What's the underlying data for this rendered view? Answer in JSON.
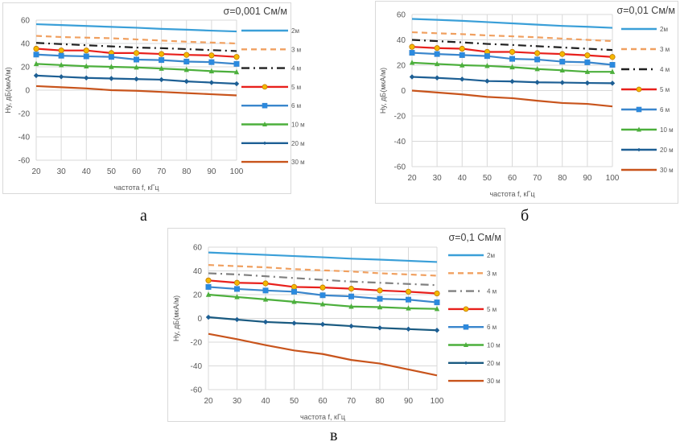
{
  "figure": {
    "captions": [
      "а",
      "б",
      "в"
    ]
  },
  "chart_data": [
    {
      "type": "line",
      "panel_label": "а",
      "title": "σ=0,001 См/м",
      "xlabel": "частота f, кГц",
      "ylabel": "Hy, дБ(мкА/м)",
      "x": [
        20,
        30,
        40,
        50,
        60,
        70,
        80,
        90,
        100
      ],
      "xlim": [
        20,
        100
      ],
      "ylim": [
        -60,
        60
      ],
      "yticks": [
        60,
        40,
        20,
        0,
        -20,
        -40,
        -60
      ],
      "xticks": [
        20,
        30,
        40,
        50,
        60,
        70,
        80,
        90,
        100
      ],
      "grid": true,
      "legend_position": "right",
      "series": [
        {
          "name": "2м",
          "color": "#3a9fd8",
          "style": "solid",
          "marker": "none",
          "values": [
            56.5,
            55.8,
            55,
            54.2,
            53.5,
            52.5,
            51.8,
            51,
            50.3
          ]
        },
        {
          "name": "3 м",
          "color": "#f0a060",
          "style": "dash",
          "marker": "none",
          "values": [
            46.5,
            45.5,
            45,
            44.5,
            43.5,
            42.5,
            41.5,
            40.8,
            40
          ]
        },
        {
          "name": "4 м",
          "color": "#202020",
          "style": "dashdot",
          "marker": "none",
          "values": [
            40.5,
            39.5,
            38.5,
            37.5,
            36.5,
            36,
            35.2,
            34.3,
            33.5
          ]
        },
        {
          "name": "5 м",
          "color": "#e8201c",
          "style": "solid",
          "marker": "circle",
          "marker_fill": "#f5b800",
          "values": [
            35.5,
            34,
            34,
            31.8,
            31.8,
            31,
            30.2,
            29.8,
            28.5
          ]
        },
        {
          "name": "6 м",
          "color": "#3a86cc",
          "style": "solid",
          "marker": "square",
          "marker_fill": "#2a8ae0",
          "values": [
            30.5,
            29.5,
            29,
            28.5,
            26.2,
            25.8,
            24.5,
            24,
            22.5
          ]
        },
        {
          "name": "10 м",
          "color": "#4caf3c",
          "style": "solid",
          "marker": "triangle",
          "marker_fill": "#4caf3c",
          "values": [
            22.5,
            21.5,
            20.5,
            20,
            19.5,
            18.5,
            17.5,
            16.3,
            15.5
          ]
        },
        {
          "name": "20 м",
          "color": "#1d5f94",
          "style": "solid",
          "marker": "diamond",
          "marker_fill": "#1d5f94",
          "values": [
            12.5,
            11.5,
            10.5,
            10,
            9.5,
            9,
            7.5,
            6.5,
            5.5
          ]
        },
        {
          "name": "30 м",
          "color": "#c8541c",
          "style": "solid",
          "marker": "none",
          "values": [
            3.5,
            2.5,
            1.5,
            0,
            -0.5,
            -1.5,
            -2.5,
            -3.5,
            -4.5
          ]
        }
      ]
    },
    {
      "type": "line",
      "panel_label": "б",
      "title": "σ=0,01 См/м",
      "xlabel": "частота f, кГц",
      "ylabel": "Hy, дБ(мкА/м)",
      "x": [
        20,
        30,
        40,
        50,
        60,
        70,
        80,
        90,
        100
      ],
      "xlim": [
        20,
        100
      ],
      "ylim": [
        -60,
        60
      ],
      "yticks": [
        60,
        40,
        20,
        0,
        -20,
        -40,
        -60
      ],
      "xticks": [
        20,
        30,
        40,
        50,
        60,
        70,
        80,
        90,
        100
      ],
      "grid": true,
      "legend_position": "right",
      "series": [
        {
          "name": "2м",
          "color": "#3a9fd8",
          "style": "solid",
          "marker": "none",
          "values": [
            56.5,
            55.8,
            55,
            54,
            53,
            52,
            51,
            50.3,
            49.5
          ]
        },
        {
          "name": "3 м",
          "color": "#f0a060",
          "style": "dash",
          "marker": "none",
          "values": [
            46,
            45.2,
            44.5,
            43.5,
            42.8,
            42,
            41,
            40,
            39
          ]
        },
        {
          "name": "4 м",
          "color": "#202020",
          "style": "dashdot",
          "marker": "none",
          "values": [
            40,
            39,
            38,
            36.8,
            36,
            35,
            34,
            33,
            32
          ]
        },
        {
          "name": "5 м",
          "color": "#e8201c",
          "style": "solid",
          "marker": "circle",
          "marker_fill": "#f5b800",
          "values": [
            34.5,
            33.5,
            33,
            30.5,
            30.5,
            29.5,
            28.8,
            27.8,
            26.5
          ]
        },
        {
          "name": "6 м",
          "color": "#3a86cc",
          "style": "solid",
          "marker": "square",
          "marker_fill": "#2a8ae0",
          "values": [
            29.8,
            28.8,
            28,
            27.2,
            25,
            24.5,
            22.8,
            22.3,
            20.3
          ]
        },
        {
          "name": "10 м",
          "color": "#4caf3c",
          "style": "solid",
          "marker": "triangle",
          "marker_fill": "#4caf3c",
          "values": [
            22,
            21,
            20,
            19.5,
            18.5,
            17,
            16,
            14.8,
            14.8
          ]
        },
        {
          "name": "20 м",
          "color": "#1d5f94",
          "style": "solid",
          "marker": "diamond",
          "marker_fill": "#1d5f94",
          "values": [
            10.8,
            10,
            9,
            7.5,
            7.2,
            6.5,
            6.3,
            6,
            5.8
          ]
        },
        {
          "name": "30 м",
          "color": "#c8541c",
          "style": "solid",
          "marker": "none",
          "values": [
            0,
            -1.5,
            -3,
            -5,
            -6,
            -8,
            -9.8,
            -10.5,
            -12.5
          ]
        }
      ]
    },
    {
      "type": "line",
      "panel_label": "в",
      "title": "σ=0,1 См/м",
      "xlabel": "частота f, кГц",
      "ylabel": "Hy, дБ(мкА/м)",
      "x": [
        20,
        30,
        40,
        50,
        60,
        70,
        80,
        90,
        100
      ],
      "xlim": [
        20,
        100
      ],
      "ylim": [
        -60,
        60
      ],
      "yticks": [
        60,
        40,
        20,
        0,
        -20,
        -40,
        -60
      ],
      "xticks": [
        20,
        30,
        40,
        50,
        60,
        70,
        80,
        90,
        100
      ],
      "grid": true,
      "legend_position": "right",
      "series": [
        {
          "name": "2м",
          "color": "#3a9fd8",
          "style": "solid",
          "marker": "none",
          "values": [
            55.5,
            54.5,
            53.5,
            52.5,
            51.5,
            50.3,
            49.5,
            48.5,
            47.5
          ]
        },
        {
          "name": "3 м",
          "color": "#f0a060",
          "style": "dash",
          "marker": "none",
          "values": [
            45,
            44,
            43,
            41.5,
            40.5,
            39.5,
            38,
            37,
            36
          ]
        },
        {
          "name": "4 м",
          "color": "#808080",
          "style": "dashdot",
          "marker": "none",
          "values": [
            38,
            37,
            35.5,
            34,
            32.5,
            31,
            30,
            29,
            28
          ]
        },
        {
          "name": "5 м",
          "color": "#e8201c",
          "style": "solid",
          "marker": "circle",
          "marker_fill": "#f5b800",
          "values": [
            32,
            30,
            29.5,
            26.5,
            26,
            25,
            23.5,
            22.5,
            21
          ]
        },
        {
          "name": "6 м",
          "color": "#3a86cc",
          "style": "solid",
          "marker": "square",
          "marker_fill": "#2a8ae0",
          "values": [
            26.5,
            24.8,
            23.5,
            22.5,
            19.5,
            18.5,
            16.5,
            15.8,
            13.5
          ]
        },
        {
          "name": "10 м",
          "color": "#4caf3c",
          "style": "solid",
          "marker": "triangle",
          "marker_fill": "#4caf3c",
          "values": [
            20,
            18,
            16,
            14,
            12,
            10,
            9.5,
            8.5,
            8
          ]
        },
        {
          "name": "20 м",
          "color": "#1a5a80",
          "style": "solid",
          "marker": "diamond",
          "marker_fill": "#1d5f94",
          "values": [
            1,
            -1,
            -3,
            -4,
            -5,
            -6.5,
            -8,
            -9,
            -10
          ]
        },
        {
          "name": "30 м",
          "color": "#c8541c",
          "style": "solid",
          "marker": "none",
          "values": [
            -13,
            -17.5,
            -22.5,
            -27,
            -30,
            -35,
            -38,
            -43,
            -48
          ]
        }
      ]
    }
  ]
}
